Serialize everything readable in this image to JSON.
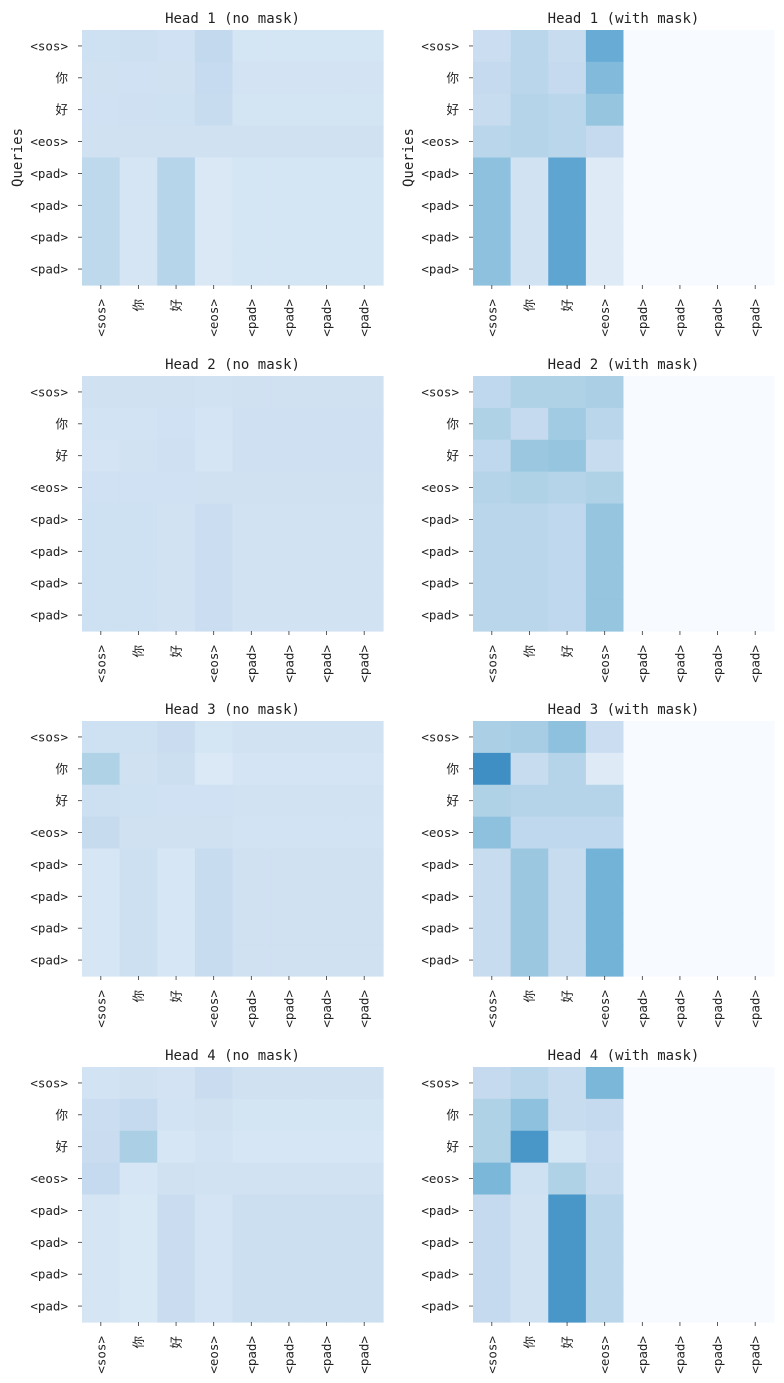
{
  "chart_data": [
    {
      "type": "heatmap",
      "title": "Head 1 (no mask)",
      "ylabel": "Queries",
      "x_tokens": [
        "<sos>",
        "你",
        "好",
        "<eos>",
        "<pad>",
        "<pad>",
        "<pad>",
        "<pad>"
      ],
      "y_tokens": [
        "<sos>",
        "你",
        "好",
        "<eos>",
        "<pad>",
        "<pad>",
        "<pad>",
        "<pad>"
      ],
      "values": [
        [
          0.13,
          0.135,
          0.128,
          0.165,
          0.11,
          0.11,
          0.11,
          0.11
        ],
        [
          0.123,
          0.128,
          0.126,
          0.158,
          0.116,
          0.116,
          0.116,
          0.116
        ],
        [
          0.127,
          0.131,
          0.13,
          0.152,
          0.115,
          0.115,
          0.115,
          0.115
        ],
        [
          0.125,
          0.125,
          0.126,
          0.123,
          0.125,
          0.125,
          0.125,
          0.125
        ],
        [
          0.173,
          0.109,
          0.188,
          0.092,
          0.11,
          0.11,
          0.11,
          0.11
        ],
        [
          0.173,
          0.109,
          0.188,
          0.092,
          0.11,
          0.11,
          0.11,
          0.11
        ],
        [
          0.173,
          0.109,
          0.188,
          0.092,
          0.11,
          0.11,
          0.11,
          0.11
        ],
        [
          0.173,
          0.109,
          0.188,
          0.092,
          0.11,
          0.11,
          0.11,
          0.11
        ]
      ]
    },
    {
      "type": "heatmap",
      "title": "Head 1 (with mask)",
      "ylabel": "Queries",
      "x_tokens": [
        "<sos>",
        "你",
        "好",
        "<eos>",
        "<pad>",
        "<pad>",
        "<pad>",
        "<pad>"
      ],
      "y_tokens": [
        "<sos>",
        "你",
        "好",
        "<eos>",
        "<pad>",
        "<pad>",
        "<pad>",
        "<pad>"
      ],
      "values": [
        [
          0.14,
          0.18,
          0.15,
          0.32,
          0,
          0,
          0,
          0
        ],
        [
          0.16,
          0.18,
          0.16,
          0.28,
          0,
          0,
          0,
          0
        ],
        [
          0.15,
          0.19,
          0.18,
          0.25,
          0,
          0,
          0,
          0
        ],
        [
          0.18,
          0.19,
          0.18,
          0.16,
          0,
          0,
          0,
          0
        ],
        [
          0.26,
          0.12,
          0.34,
          0.08,
          0,
          0,
          0,
          0
        ],
        [
          0.26,
          0.12,
          0.34,
          0.08,
          0,
          0,
          0,
          0
        ],
        [
          0.26,
          0.12,
          0.34,
          0.08,
          0,
          0,
          0,
          0
        ],
        [
          0.26,
          0.12,
          0.34,
          0.08,
          0,
          0,
          0,
          0
        ]
      ]
    },
    {
      "type": "heatmap",
      "title": "Head 2 (no mask)",
      "x_tokens": [
        "<sos>",
        "你",
        "好",
        "<eos>",
        "<pad>",
        "<pad>",
        "<pad>",
        "<pad>"
      ],
      "y_tokens": [
        "<sos>",
        "你",
        "好",
        "<eos>",
        "<pad>",
        "<pad>",
        "<pad>",
        "<pad>"
      ],
      "values": [
        [
          0.125,
          0.124,
          0.126,
          0.12,
          0.126,
          0.126,
          0.126,
          0.126
        ],
        [
          0.119,
          0.117,
          0.127,
          0.112,
          0.131,
          0.131,
          0.131,
          0.131
        ],
        [
          0.111,
          0.122,
          0.131,
          0.107,
          0.132,
          0.132,
          0.132,
          0.132
        ],
        [
          0.129,
          0.128,
          0.127,
          0.126,
          0.123,
          0.123,
          0.123,
          0.123
        ],
        [
          0.13,
          0.13,
          0.121,
          0.14,
          0.12,
          0.12,
          0.12,
          0.12
        ],
        [
          0.13,
          0.13,
          0.121,
          0.14,
          0.12,
          0.12,
          0.12,
          0.12
        ],
        [
          0.13,
          0.13,
          0.121,
          0.14,
          0.12,
          0.12,
          0.12,
          0.12
        ],
        [
          0.13,
          0.13,
          0.121,
          0.14,
          0.12,
          0.12,
          0.12,
          0.12
        ]
      ]
    },
    {
      "type": "heatmap",
      "title": "Head 2 (with mask)",
      "x_tokens": [
        "<sos>",
        "你",
        "好",
        "<eos>",
        "<pad>",
        "<pad>",
        "<pad>",
        "<pad>"
      ],
      "y_tokens": [
        "<sos>",
        "你",
        "好",
        "<eos>",
        "<pad>",
        "<pad>",
        "<pad>",
        "<pad>"
      ],
      "values": [
        [
          0.17,
          0.2,
          0.2,
          0.21,
          0,
          0,
          0,
          0
        ],
        [
          0.2,
          0.16,
          0.23,
          0.18,
          0,
          0,
          0,
          0
        ],
        [
          0.17,
          0.24,
          0.25,
          0.15,
          0,
          0,
          0,
          0
        ],
        [
          0.19,
          0.2,
          0.19,
          0.2,
          0,
          0,
          0,
          0
        ],
        [
          0.18,
          0.18,
          0.17,
          0.25,
          0,
          0,
          0,
          0
        ],
        [
          0.18,
          0.18,
          0.17,
          0.25,
          0,
          0,
          0,
          0
        ],
        [
          0.18,
          0.18,
          0.17,
          0.25,
          0,
          0,
          0,
          0
        ],
        [
          0.18,
          0.18,
          0.17,
          0.25,
          0,
          0,
          0,
          0
        ]
      ]
    },
    {
      "type": "heatmap",
      "title": "Head 3 (no mask)",
      "x_tokens": [
        "<sos>",
        "你",
        "好",
        "<eos>",
        "<pad>",
        "<pad>",
        "<pad>",
        "<pad>"
      ],
      "y_tokens": [
        "<sos>",
        "你",
        "好",
        "<eos>",
        "<pad>",
        "<pad>",
        "<pad>",
        "<pad>"
      ],
      "values": [
        [
          0.13,
          0.13,
          0.145,
          0.11,
          0.121,
          0.121,
          0.121,
          0.121
        ],
        [
          0.2,
          0.124,
          0.137,
          0.09,
          0.112,
          0.112,
          0.112,
          0.112
        ],
        [
          0.135,
          0.13,
          0.128,
          0.128,
          0.12,
          0.12,
          0.12,
          0.12
        ],
        [
          0.155,
          0.125,
          0.124,
          0.126,
          0.117,
          0.117,
          0.117,
          0.117
        ],
        [
          0.105,
          0.135,
          0.105,
          0.15,
          0.126,
          0.126,
          0.126,
          0.126
        ],
        [
          0.105,
          0.135,
          0.105,
          0.15,
          0.126,
          0.126,
          0.126,
          0.126
        ],
        [
          0.105,
          0.135,
          0.105,
          0.15,
          0.126,
          0.126,
          0.126,
          0.126
        ],
        [
          0.105,
          0.135,
          0.105,
          0.15,
          0.126,
          0.126,
          0.126,
          0.126
        ]
      ]
    },
    {
      "type": "heatmap",
      "title": "Head 3 (with mask)",
      "x_tokens": [
        "<sos>",
        "你",
        "好",
        "<eos>",
        "<pad>",
        "<pad>",
        "<pad>",
        "<pad>"
      ],
      "y_tokens": [
        "<sos>",
        "你",
        "好",
        "<eos>",
        "<pad>",
        "<pad>",
        "<pad>",
        "<pad>"
      ],
      "values": [
        [
          0.21,
          0.22,
          0.26,
          0.14,
          0,
          0,
          0,
          0
        ],
        [
          0.4,
          0.15,
          0.19,
          0.08,
          0,
          0,
          0,
          0
        ],
        [
          0.2,
          0.19,
          0.19,
          0.19,
          0,
          0,
          0,
          0
        ],
        [
          0.26,
          0.17,
          0.17,
          0.17,
          0,
          0,
          0,
          0
        ],
        [
          0.15,
          0.24,
          0.15,
          0.3,
          0,
          0,
          0,
          0
        ],
        [
          0.15,
          0.24,
          0.15,
          0.3,
          0,
          0,
          0,
          0
        ],
        [
          0.15,
          0.24,
          0.15,
          0.3,
          0,
          0,
          0,
          0
        ],
        [
          0.15,
          0.24,
          0.15,
          0.3,
          0,
          0,
          0,
          0
        ]
      ]
    },
    {
      "type": "heatmap",
      "title": "Head 4 (no mask)",
      "x_tokens": [
        "<sos>",
        "你",
        "好",
        "<eos>",
        "<pad>",
        "<pad>",
        "<pad>",
        "<pad>"
      ],
      "y_tokens": [
        "<sos>",
        "你",
        "好",
        "<eos>",
        "<pad>",
        "<pad>",
        "<pad>",
        "<pad>"
      ],
      "values": [
        [
          0.118,
          0.123,
          0.116,
          0.145,
          0.125,
          0.125,
          0.125,
          0.125
        ],
        [
          0.14,
          0.16,
          0.118,
          0.126,
          0.114,
          0.114,
          0.114,
          0.114
        ],
        [
          0.145,
          0.21,
          0.105,
          0.118,
          0.105,
          0.105,
          0.105,
          0.105
        ],
        [
          0.16,
          0.105,
          0.125,
          0.121,
          0.122,
          0.122,
          0.122,
          0.122
        ],
        [
          0.108,
          0.094,
          0.145,
          0.111,
          0.136,
          0.136,
          0.136,
          0.136
        ],
        [
          0.108,
          0.094,
          0.145,
          0.111,
          0.136,
          0.136,
          0.136,
          0.136
        ],
        [
          0.108,
          0.094,
          0.145,
          0.111,
          0.136,
          0.136,
          0.136,
          0.136
        ],
        [
          0.108,
          0.094,
          0.145,
          0.111,
          0.136,
          0.136,
          0.136,
          0.136
        ]
      ]
    },
    {
      "type": "heatmap",
      "title": "Head 4 (with mask)",
      "x_tokens": [
        "<sos>",
        "你",
        "好",
        "<eos>",
        "<pad>",
        "<pad>",
        "<pad>",
        "<pad>"
      ],
      "y_tokens": [
        "<sos>",
        "你",
        "好",
        "<eos>",
        "<pad>",
        "<pad>",
        "<pad>",
        "<pad>"
      ],
      "values": [
        [
          0.16,
          0.18,
          0.15,
          0.29,
          0,
          0,
          0,
          0
        ],
        [
          0.2,
          0.26,
          0.15,
          0.16,
          0,
          0,
          0,
          0
        ],
        [
          0.2,
          0.38,
          0.11,
          0.14,
          0,
          0,
          0,
          0
        ],
        [
          0.29,
          0.13,
          0.2,
          0.15,
          0,
          0,
          0,
          0
        ],
        [
          0.16,
          0.12,
          0.38,
          0.18,
          0,
          0,
          0,
          0
        ],
        [
          0.16,
          0.12,
          0.38,
          0.18,
          0,
          0,
          0,
          0
        ],
        [
          0.16,
          0.12,
          0.38,
          0.18,
          0,
          0,
          0,
          0
        ],
        [
          0.16,
          0.12,
          0.38,
          0.18,
          0,
          0,
          0,
          0
        ]
      ]
    }
  ],
  "colormap": {
    "name": "Blues",
    "vmin": 0,
    "vmax": 0.55,
    "stops": [
      "#f7fbff",
      "#deebf7",
      "#c6dbef",
      "#9ecae1",
      "#6baed6",
      "#4292c6",
      "#2171b5",
      "#08519c"
    ]
  }
}
